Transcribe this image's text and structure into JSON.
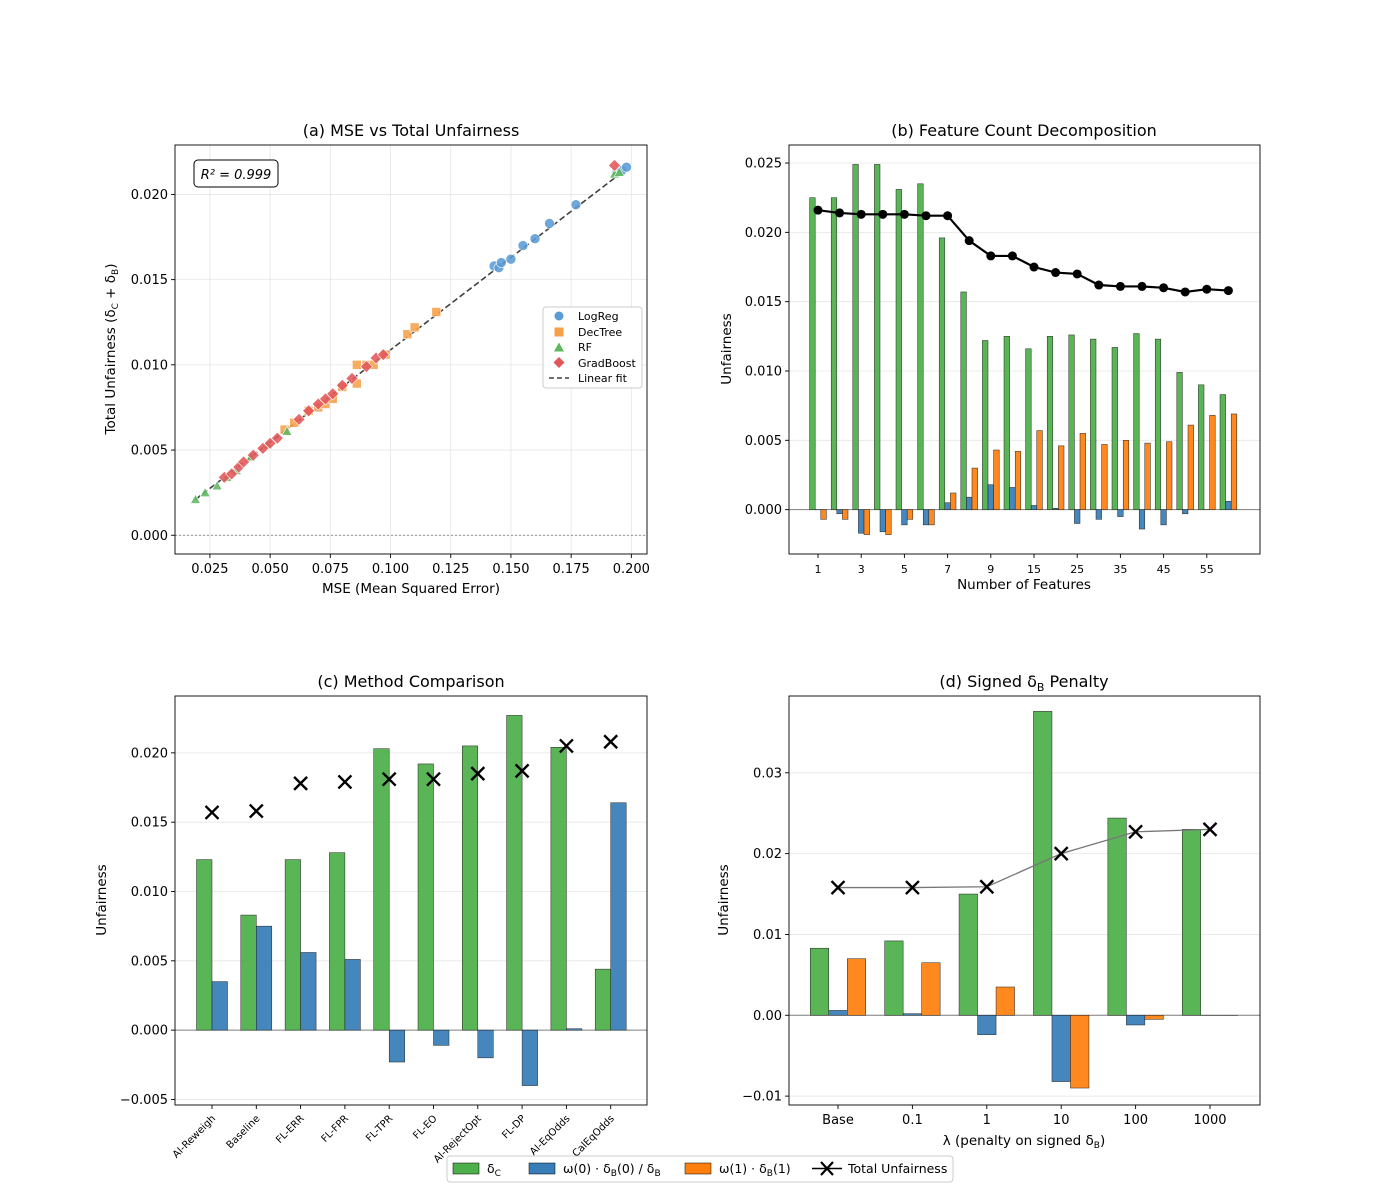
{
  "figure": {
    "width": 1400,
    "height": 1200
  },
  "colors": {
    "green": "#4daf4a",
    "blue": "#377eb8",
    "orange": "#ff7f0e",
    "blue_pt": "#5b9bd5",
    "orange_pt": "#f6a04a",
    "green_pt": "#5cb85c",
    "red_pt": "#e15759",
    "black": "#000000",
    "grid": "#e6e6e6"
  },
  "legend": {
    "items": [
      {
        "label": "δ_C",
        "kind": "bar",
        "color": "green"
      },
      {
        "label": "ω(0) · δ_B(0) / δ_B",
        "kind": "bar",
        "color": "blue"
      },
      {
        "label": "ω(1) · δ_B(1)",
        "kind": "bar",
        "color": "orange"
      },
      {
        "label": "Total Unfairness",
        "kind": "marker",
        "color": "black"
      }
    ]
  },
  "chart_data": [
    {
      "id": "a",
      "type": "scatter",
      "title": "(a) MSE vs Total Unfairness",
      "xlabel": "MSE (Mean Squared Error)",
      "ylabel": "Total Unfairness (δ_C + δ_B)",
      "xlim": [
        0.0105,
        0.2065
      ],
      "ylim": [
        -0.0011,
        0.0229
      ],
      "xticks": [
        0.025,
        0.05,
        0.075,
        0.1,
        0.125,
        0.15,
        0.175,
        0.2
      ],
      "xtick_labels": [
        "0.025",
        "0.050",
        "0.075",
        "0.100",
        "0.125",
        "0.150",
        "0.175",
        "0.200"
      ],
      "yticks": [
        0,
        0.005,
        0.01,
        0.015,
        0.02
      ],
      "ytick_labels": [
        "0.000",
        "0.005",
        "0.010",
        "0.015",
        "0.020"
      ],
      "grid": true,
      "zero_line": true,
      "annotation": "R² = 0.999",
      "legend_position": "center-right",
      "fit": {
        "label": "Linear fit",
        "x": [
          0.019,
          0.198
        ],
        "y": [
          0.0021,
          0.0215
        ]
      },
      "series": [
        {
          "name": "LogReg",
          "marker": "circle",
          "color": "blue_pt",
          "points": [
            [
              0.143,
              0.0158
            ],
            [
              0.145,
              0.0157
            ],
            [
              0.146,
              0.016
            ],
            [
              0.15,
              0.0162
            ],
            [
              0.155,
              0.017
            ],
            [
              0.16,
              0.0174
            ],
            [
              0.166,
              0.0183
            ],
            [
              0.177,
              0.0194
            ],
            [
              0.194,
              0.0213
            ],
            [
              0.196,
              0.0214
            ],
            [
              0.198,
              0.0216
            ]
          ]
        },
        {
          "name": "DecTree",
          "marker": "square",
          "color": "orange_pt",
          "points": [
            [
              0.056,
              0.0062
            ],
            [
              0.06,
              0.0066
            ],
            [
              0.066,
              0.0073
            ],
            [
              0.07,
              0.0075
            ],
            [
              0.073,
              0.0077
            ],
            [
              0.076,
              0.008
            ],
            [
              0.08,
              0.0087
            ],
            [
              0.086,
              0.0089
            ],
            [
              0.086,
              0.01
            ],
            [
              0.09,
              0.01
            ],
            [
              0.093,
              0.01
            ],
            [
              0.098,
              0.0106
            ],
            [
              0.107,
              0.0118
            ],
            [
              0.11,
              0.0122
            ],
            [
              0.119,
              0.0131
            ]
          ]
        },
        {
          "name": "RF",
          "marker": "triangle",
          "color": "green_pt",
          "points": [
            [
              0.019,
              0.0021
            ],
            [
              0.023,
              0.0025
            ],
            [
              0.028,
              0.0029
            ],
            [
              0.032,
              0.0034
            ],
            [
              0.036,
              0.0038
            ],
            [
              0.042,
              0.0046
            ],
            [
              0.049,
              0.0053
            ],
            [
              0.057,
              0.0061
            ],
            [
              0.193,
              0.0212
            ],
            [
              0.195,
              0.0213
            ]
          ]
        },
        {
          "name": "GradBoost",
          "marker": "diamond",
          "color": "red_pt",
          "points": [
            [
              0.031,
              0.0034
            ],
            [
              0.034,
              0.0036
            ],
            [
              0.037,
              0.004
            ],
            [
              0.039,
              0.0043
            ],
            [
              0.043,
              0.0047
            ],
            [
              0.047,
              0.0051
            ],
            [
              0.05,
              0.0054
            ],
            [
              0.053,
              0.0057
            ],
            [
              0.062,
              0.0068
            ],
            [
              0.066,
              0.0073
            ],
            [
              0.07,
              0.0077
            ],
            [
              0.073,
              0.008
            ],
            [
              0.076,
              0.0083
            ],
            [
              0.08,
              0.0088
            ],
            [
              0.084,
              0.0092
            ],
            [
              0.09,
              0.0099
            ],
            [
              0.094,
              0.0104
            ],
            [
              0.097,
              0.0106
            ],
            [
              0.193,
              0.0217
            ]
          ]
        }
      ]
    },
    {
      "id": "b",
      "type": "bar",
      "title": "(b) Feature Count Decomposition",
      "xlabel": "Number of Features",
      "ylabel": "Unfairness",
      "ylim": [
        -0.0032,
        0.0263
      ],
      "yticks": [
        0,
        0.005,
        0.01,
        0.015,
        0.02,
        0.025
      ],
      "ytick_labels": [
        "0.000",
        "0.005",
        "0.010",
        "0.015",
        "0.020",
        "0.025"
      ],
      "grid": true,
      "categories": [
        "1",
        "2",
        "3",
        "4",
        "5",
        "6",
        "7",
        "8",
        "9",
        "10",
        "15",
        "20",
        "25",
        "30",
        "35",
        "40",
        "45",
        "50",
        "55",
        "60"
      ],
      "xtick_labels": [
        "1",
        "3",
        "5",
        "7",
        "9",
        "15",
        "25",
        "35",
        "45",
        "55"
      ],
      "xtick_indices": [
        0,
        2,
        4,
        6,
        8,
        10,
        12,
        14,
        16,
        18
      ],
      "series": [
        {
          "name": "δ_C",
          "color": "green",
          "values": [
            0.0225,
            0.0225,
            0.0249,
            0.0249,
            0.0231,
            0.0235,
            0.0196,
            0.0157,
            0.0122,
            0.0125,
            0.0116,
            0.0125,
            0.0126,
            0.0123,
            0.0117,
            0.0127,
            0.0123,
            0.0099,
            0.009,
            0.0083
          ]
        },
        {
          "name": "ω(0) · δ_B(0) / δ_B",
          "color": "blue",
          "values": [
            0.0,
            -0.0003,
            -0.0017,
            -0.0016,
            -0.0011,
            -0.0011,
            0.0005,
            0.0009,
            0.0018,
            0.0016,
            0.0003,
            0.0001,
            -0.001,
            -0.0007,
            -0.0005,
            -0.0014,
            -0.0011,
            -0.0003,
            0.0,
            0.0006
          ]
        },
        {
          "name": "ω(1) · δ_B(1)",
          "color": "orange",
          "values": [
            -0.0007,
            -0.0007,
            -0.0018,
            -0.0018,
            -0.0007,
            -0.0011,
            0.0012,
            0.003,
            0.0043,
            0.0042,
            0.0057,
            0.0046,
            0.0055,
            0.0047,
            0.005,
            0.0048,
            0.0049,
            0.0061,
            0.0068,
            0.0069
          ]
        },
        {
          "name": "Total Unfairness",
          "type": "line",
          "color": "black",
          "values": [
            0.0216,
            0.0214,
            0.0213,
            0.0213,
            0.0213,
            0.0212,
            0.0212,
            0.0194,
            0.0183,
            0.0183,
            0.0175,
            0.0171,
            0.017,
            0.0162,
            0.0161,
            0.0161,
            0.016,
            0.0157,
            0.0159,
            0.0158
          ]
        }
      ]
    },
    {
      "id": "c",
      "type": "bar",
      "title": "(c) Method Comparison",
      "xlabel": "",
      "ylabel": "Unfairness",
      "ylim": [
        -0.0054,
        0.0241
      ],
      "yticks": [
        -0.005,
        0,
        0.005,
        0.01,
        0.015,
        0.02
      ],
      "ytick_labels": [
        "−0.005",
        "0.000",
        "0.005",
        "0.010",
        "0.015",
        "0.020"
      ],
      "grid": true,
      "categories": [
        "AI-Reweigh",
        "Baseline",
        "FL-ERR",
        "FL-FPR",
        "FL-TPR",
        "FL-EO",
        "AI-RejectOpt",
        "FL-DP",
        "AI-EqOdds",
        "CalEqOdds"
      ],
      "series": [
        {
          "name": "δ_C",
          "color": "green",
          "values": [
            0.0123,
            0.0083,
            0.0123,
            0.0128,
            0.0203,
            0.0192,
            0.0205,
            0.0227,
            0.0204,
            0.0044
          ]
        },
        {
          "name": "ω(0) · δ_B(0) / δ_B",
          "color": "blue",
          "values": [
            0.0035,
            0.0075,
            0.0056,
            0.0051,
            -0.0023,
            -0.0011,
            -0.002,
            -0.004,
            0.0001,
            0.0164
          ]
        },
        {
          "name": "Total Unfairness",
          "type": "marker",
          "color": "black",
          "values": [
            0.0157,
            0.0158,
            0.0178,
            0.0179,
            0.0181,
            0.0181,
            0.0185,
            0.0187,
            0.0205,
            0.0208
          ]
        }
      ]
    },
    {
      "id": "d",
      "type": "bar",
      "title": "(d) Signed δ_B Penalty",
      "xlabel": "λ (penalty on signed δ_B)",
      "ylabel": "Unfairness",
      "ylim": [
        -0.0111,
        0.0395
      ],
      "yticks": [
        -0.01,
        0,
        0.01,
        0.02,
        0.03
      ],
      "ytick_labels": [
        "−0.01",
        "0.00",
        "0.01",
        "0.02",
        "0.03"
      ],
      "grid": true,
      "categories": [
        "Base",
        "0.1",
        "1",
        "10",
        "100",
        "1000"
      ],
      "series": [
        {
          "name": "δ_C",
          "color": "green",
          "values": [
            0.0083,
            0.0092,
            0.015,
            0.0376,
            0.0244,
            0.023
          ]
        },
        {
          "name": "ω(0) · δ_B(0) / δ_B",
          "color": "blue",
          "values": [
            0.0006,
            0.0002,
            -0.0024,
            -0.0082,
            -0.0012,
            0.0
          ]
        },
        {
          "name": "ω(1) · δ_B(1)",
          "color": "orange",
          "values": [
            0.007,
            0.0065,
            0.0035,
            -0.009,
            -0.0005,
            0.0
          ]
        },
        {
          "name": "Total Unfairness",
          "type": "line+marker",
          "color": "black",
          "values": [
            0.0158,
            0.0158,
            0.0159,
            0.02,
            0.0227,
            0.023
          ]
        }
      ]
    }
  ]
}
